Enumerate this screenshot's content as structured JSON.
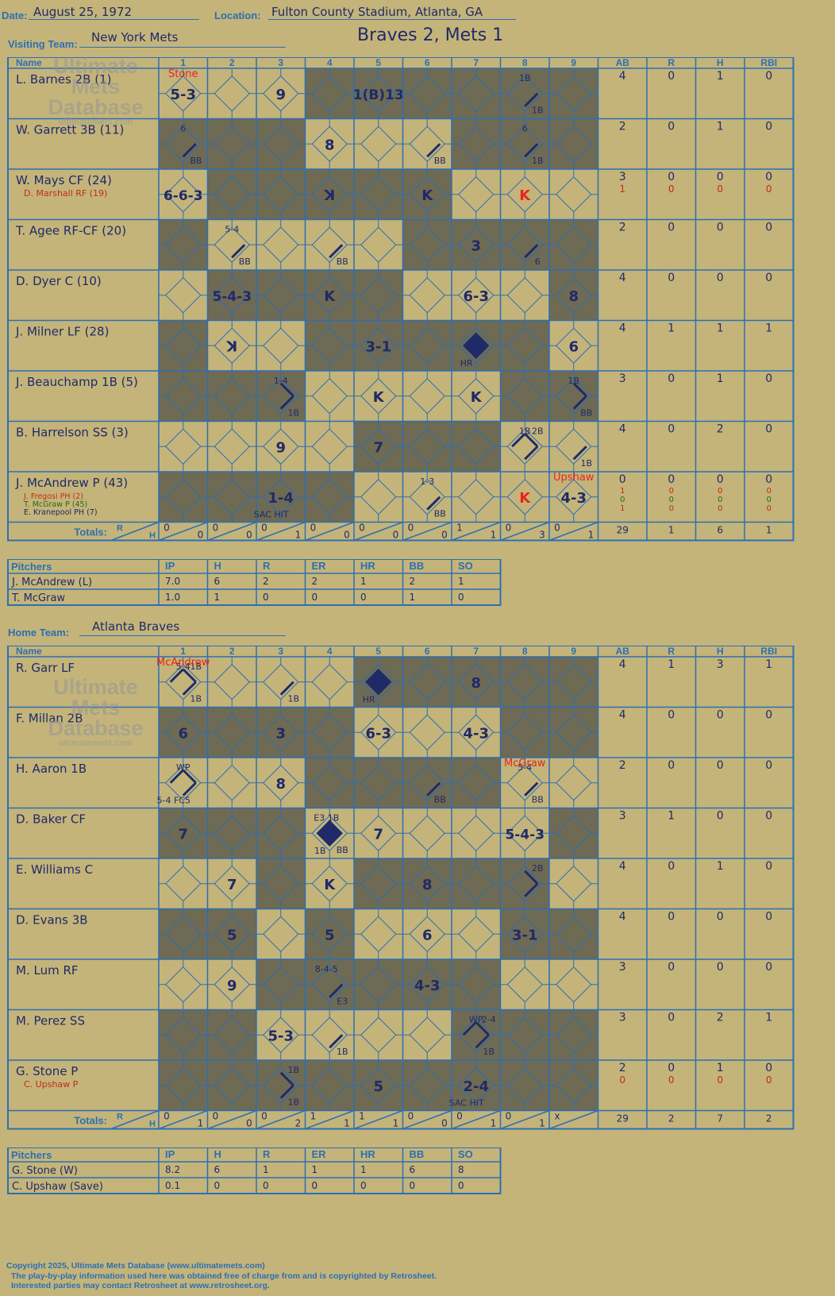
{
  "header": {
    "date_label": "Date:",
    "date": "August 25, 1972",
    "location_label": "Location:",
    "location": "Fulton County Stadium, Atlanta, GA",
    "title": "Braves 2, Mets 1",
    "visiting_label": "Visiting Team:",
    "visiting_team": "New York Mets",
    "home_label": "Home Team:",
    "home_team": "Atlanta Braves"
  },
  "grid_headers": {
    "name": "Name",
    "innings": [
      "1",
      "2",
      "3",
      "4",
      "5",
      "6",
      "7",
      "8",
      "9"
    ],
    "stats": [
      "AB",
      "R",
      "H",
      "RBI"
    ],
    "totals": "Totals:",
    "r": "R",
    "h": "H"
  },
  "visitors": {
    "rows": [
      {
        "name": "L. Barnes 2B (1)",
        "subs": [],
        "stats": [
          [
            "4",
            "0",
            "1",
            "0"
          ]
        ],
        "cells": [
          {
            "c": 0,
            "t": "5-3",
            "pitcher": "Stone"
          },
          {
            "c": 2,
            "t": "9"
          },
          {
            "c": 4,
            "t": "1(B)13"
          },
          {
            "c": 7,
            "t": "",
            "l": "1B",
            "b": "1B",
            "seg": 1
          }
        ]
      },
      {
        "name": "W. Garrett 3B (11)",
        "subs": [],
        "stats": [
          [
            "2",
            "0",
            "1",
            "0"
          ]
        ],
        "cells": [
          {
            "c": 0,
            "t": "",
            "l": "6",
            "b": "BB",
            "seg": 1
          },
          {
            "c": 3,
            "t": "8"
          },
          {
            "c": 5,
            "t": "",
            "b": "BB",
            "seg": 1
          },
          {
            "c": 7,
            "t": "",
            "l": "6",
            "b": "1B",
            "seg": 1
          }
        ]
      },
      {
        "name": "W. Mays CF (24)",
        "subs": [
          {
            "n": "D. Marshall RF (19)",
            "cl": "#c42a1a"
          }
        ],
        "stats": [
          [
            "3",
            "0",
            "0",
            "0"
          ],
          [
            "1",
            "0",
            "0",
            "0"
          ]
        ],
        "cells": [
          {
            "c": 0,
            "t": "6-6-3"
          },
          {
            "c": 3,
            "t": "ꓘ"
          },
          {
            "c": 5,
            "t": "K"
          },
          {
            "c": 7,
            "t": "K",
            "red": true
          }
        ]
      },
      {
        "name": "T. Agee RF-CF (20)",
        "subs": [],
        "stats": [
          [
            "2",
            "0",
            "0",
            "0"
          ]
        ],
        "cells": [
          {
            "c": 1,
            "t": "",
            "l": "5-4",
            "b": "BB",
            "seg": 1
          },
          {
            "c": 3,
            "t": "",
            "b": "BB",
            "seg": 1
          },
          {
            "c": 6,
            "t": "3"
          },
          {
            "c": 7,
            "t": "",
            "b": "6",
            "seg": 1
          }
        ]
      },
      {
        "name": "D. Dyer C (10)",
        "subs": [],
        "stats": [
          [
            "4",
            "0",
            "0",
            "0"
          ]
        ],
        "cells": [
          {
            "c": 1,
            "t": "5-4-3"
          },
          {
            "c": 3,
            "t": "K"
          },
          {
            "c": 6,
            "t": "6-3"
          },
          {
            "c": 8,
            "t": "8"
          }
        ]
      },
      {
        "name": "J. Milner LF (28)",
        "subs": [],
        "stats": [
          [
            "4",
            "1",
            "1",
            "1"
          ]
        ],
        "cells": [
          {
            "c": 1,
            "t": "ꓘ"
          },
          {
            "c": 4,
            "t": "3-1"
          },
          {
            "c": 6,
            "t": "",
            "hr": true,
            "bl": "HR"
          },
          {
            "c": 8,
            "t": "6"
          }
        ]
      },
      {
        "name": "J. Beauchamp 1B (5)",
        "subs": [],
        "stats": [
          [
            "3",
            "0",
            "1",
            "0"
          ]
        ],
        "cells": [
          {
            "c": 2,
            "t": "",
            "l": "1-4",
            "b": "1B",
            "seg": 2
          },
          {
            "c": 4,
            "t": "K"
          },
          {
            "c": 6,
            "t": "K"
          },
          {
            "c": 8,
            "t": "",
            "l": "1B",
            "b": "BB",
            "seg": 2
          }
        ]
      },
      {
        "name": "B. Harrelson SS (3)",
        "subs": [],
        "stats": [
          [
            "4",
            "0",
            "2",
            "0"
          ]
        ],
        "cells": [
          {
            "c": 2,
            "t": "9"
          },
          {
            "c": 4,
            "t": "7"
          },
          {
            "c": 7,
            "t": "",
            "l": "1B",
            "r": "2B",
            "seg": 3
          },
          {
            "c": 8,
            "t": "",
            "b": "1B",
            "seg": 1
          }
        ]
      },
      {
        "name": "J. McAndrew P (43)",
        "subs": [
          {
            "n": "J. Fregosi PH (2)",
            "cl": "#c42a1a"
          },
          {
            "n": "T. McGraw P (45)",
            "cl": "#2a6a1a"
          },
          {
            "n": "E. Kranepool PH (7)",
            "cl": "#1f2a68"
          }
        ],
        "stats": [
          [
            "0",
            "0",
            "0",
            "0"
          ],
          [
            "1",
            "0",
            "0",
            "0"
          ],
          [
            "0",
            "0",
            "0",
            "0"
          ],
          [
            "1",
            "0",
            "0",
            "0"
          ]
        ],
        "cells": [
          {
            "c": 2,
            "t": "1-4",
            "bl": "SAC HIT"
          },
          {
            "c": 5,
            "t": "",
            "l": "1-3",
            "b": "BB",
            "seg": 1
          },
          {
            "c": 7,
            "t": "K",
            "red": true
          },
          {
            "c": 8,
            "t": "4-3",
            "pitcher": "Upshaw"
          }
        ]
      }
    ],
    "shaded": [
      [
        1,
        3,
        5,
        6,
        8
      ],
      [
        1,
        2,
        4,
        6,
        8
      ],
      [
        1,
        2,
        4,
        6,
        8
      ],
      [
        0,
        2,
        4,
        5,
        8
      ],
      [
        0,
        2,
        4,
        5,
        7
      ],
      [
        0,
        2,
        3,
        5,
        7
      ],
      [
        0,
        1,
        3,
        5,
        7
      ],
      [
        0,
        1,
        3,
        5,
        6
      ],
      [
        0,
        1,
        3,
        4,
        6
      ]
    ],
    "totals": [
      [
        "0",
        "0"
      ],
      [
        "0",
        "0"
      ],
      [
        "0",
        "1"
      ],
      [
        "0",
        "0"
      ],
      [
        "0",
        "0"
      ],
      [
        "0",
        "0"
      ],
      [
        "1",
        "1"
      ],
      [
        "0",
        "3"
      ],
      [
        "0",
        "1"
      ]
    ],
    "total_stats": [
      "29",
      "1",
      "6",
      "1"
    ]
  },
  "visitor_pitchers": {
    "label": "Pitchers",
    "cols": [
      "IP",
      "H",
      "R",
      "ER",
      "HR",
      "BB",
      "SO"
    ],
    "rows": [
      {
        "name": "J. McAndrew (L)",
        "vals": [
          "7.0",
          "6",
          "2",
          "2",
          "1",
          "2",
          "1"
        ]
      },
      {
        "name": "T. McGraw",
        "vals": [
          "1.0",
          "1",
          "0",
          "0",
          "0",
          "1",
          "0"
        ]
      }
    ]
  },
  "home": {
    "rows": [
      {
        "name": "R. Garr LF",
        "subs": [],
        "stats": [
          [
            "4",
            "1",
            "3",
            "1"
          ]
        ],
        "cells": [
          {
            "c": 0,
            "t": "",
            "l": "5-4",
            "r": "1B",
            "b": "1B",
            "seg": 3,
            "pitcher": "McAndrew"
          },
          {
            "c": 2,
            "t": "",
            "b": "1B",
            "seg": 1
          },
          {
            "c": 4,
            "t": "",
            "hr": true,
            "bl": "HR"
          },
          {
            "c": 6,
            "t": "8"
          }
        ]
      },
      {
        "name": "F. Millan 2B",
        "subs": [],
        "stats": [
          [
            "4",
            "0",
            "0",
            "0"
          ]
        ],
        "cells": [
          {
            "c": 0,
            "t": "6"
          },
          {
            "c": 2,
            "t": "3"
          },
          {
            "c": 4,
            "t": "6-3"
          },
          {
            "c": 6,
            "t": "4-3"
          }
        ]
      },
      {
        "name": "H. Aaron 1B",
        "subs": [],
        "stats": [
          [
            "2",
            "0",
            "0",
            "0"
          ]
        ],
        "cells": [
          {
            "c": 0,
            "t": "",
            "l": "WP",
            "bl": "5-4 FC5",
            "seg": 3
          },
          {
            "c": 2,
            "t": "8"
          },
          {
            "c": 5,
            "t": "",
            "b": "BB",
            "seg": 1
          },
          {
            "c": 7,
            "t": "",
            "l": "5-4",
            "b": "BB",
            "seg": 1,
            "pitcher": "McGraw"
          }
        ]
      },
      {
        "name": "D. Baker CF",
        "subs": [],
        "stats": [
          [
            "3",
            "1",
            "0",
            "0"
          ]
        ],
        "cells": [
          {
            "c": 0,
            "t": "7"
          },
          {
            "c": 3,
            "t": "",
            "hr": true,
            "l": "E3 1B",
            "bl": "1B",
            "b": "BB"
          },
          {
            "c": 4,
            "t": "7"
          },
          {
            "c": 7,
            "t": "5-4-3"
          }
        ]
      },
      {
        "name": "E. Williams C",
        "subs": [],
        "stats": [
          [
            "4",
            "0",
            "1",
            "0"
          ]
        ],
        "cells": [
          {
            "c": 1,
            "t": "7"
          },
          {
            "c": 3,
            "t": "K"
          },
          {
            "c": 5,
            "t": "8"
          },
          {
            "c": 7,
            "t": "",
            "r": "2B",
            "seg": 2
          }
        ]
      },
      {
        "name": "D. Evans 3B",
        "subs": [],
        "stats": [
          [
            "4",
            "0",
            "0",
            "0"
          ]
        ],
        "cells": [
          {
            "c": 1,
            "t": "5"
          },
          {
            "c": 3,
            "t": "5"
          },
          {
            "c": 5,
            "t": "6"
          },
          {
            "c": 7,
            "t": "3-1"
          }
        ]
      },
      {
        "name": "M. Lum RF",
        "subs": [],
        "stats": [
          [
            "3",
            "0",
            "0",
            "0"
          ]
        ],
        "cells": [
          {
            "c": 1,
            "t": "9"
          },
          {
            "c": 3,
            "t": "",
            "l": "8-4-5",
            "b": "E3",
            "seg": 1
          },
          {
            "c": 5,
            "t": "4-3"
          }
        ]
      },
      {
        "name": "M. Perez SS",
        "subs": [],
        "stats": [
          [
            "3",
            "0",
            "2",
            "1"
          ]
        ],
        "cells": [
          {
            "c": 2,
            "t": "5-3"
          },
          {
            "c": 3,
            "t": "",
            "b": "1B",
            "seg": 1
          },
          {
            "c": 6,
            "t": "",
            "l": "WP",
            "r": "2-4",
            "b": "1B",
            "seg": 3
          }
        ]
      },
      {
        "name": "G. Stone P",
        "subs": [
          {
            "n": "C. Upshaw P",
            "cl": "#c42a1a"
          }
        ],
        "stats": [
          [
            "2",
            "0",
            "1",
            "0"
          ],
          [
            "0",
            "0",
            "0",
            "0"
          ]
        ],
        "cells": [
          {
            "c": 2,
            "t": "",
            "r": "1B",
            "b": "1B",
            "seg": 2
          },
          {
            "c": 4,
            "t": "5"
          },
          {
            "c": 6,
            "t": "2-4",
            "bl": "SAC HIT"
          }
        ]
      }
    ],
    "shaded": [
      [
        1,
        3,
        5,
        7,
        8
      ],
      [
        1,
        3,
        5,
        7,
        8
      ],
      [
        1,
        3,
        4,
        6,
        8
      ],
      [
        1,
        2,
        5,
        6,
        8
      ],
      [
        0,
        2,
        4,
        6,
        8
      ],
      [
        0,
        2,
        4,
        6,
        8
      ],
      [
        0,
        2,
        4,
        6,
        7,
        8
      ],
      [
        0,
        1,
        4,
        5,
        7,
        8
      ],
      [
        0,
        1,
        3,
        5,
        7,
        8
      ]
    ],
    "totals": [
      [
        "0",
        "1"
      ],
      [
        "0",
        "0"
      ],
      [
        "0",
        "2"
      ],
      [
        "1",
        "1"
      ],
      [
        "1",
        "1"
      ],
      [
        "0",
        "0"
      ],
      [
        "0",
        "1"
      ],
      [
        "0",
        "1"
      ],
      [
        "x",
        ""
      ]
    ],
    "total_stats": [
      "29",
      "2",
      "7",
      "2"
    ]
  },
  "home_pitchers": {
    "label": "Pitchers",
    "cols": [
      "IP",
      "H",
      "R",
      "ER",
      "HR",
      "BB",
      "SO"
    ],
    "rows": [
      {
        "name": "G. Stone (W)",
        "vals": [
          "8.2",
          "6",
          "1",
          "1",
          "1",
          "6",
          "8"
        ]
      },
      {
        "name": "C. Upshaw (Save)",
        "vals": [
          "0.1",
          "0",
          "0",
          "0",
          "0",
          "0",
          "0"
        ]
      }
    ]
  },
  "logo": {
    "line1": "Ultimate",
    "line2": "Mets",
    "line3": "Database",
    "url": "ultimatemets.com"
  },
  "footer": {
    "copyright": "Copyright 2025, Ultimate Mets Database (www.ultimatemets.com)",
    "line2": "The play-by-play information used here was obtained free of charge from and is copyrighted by Retrosheet.",
    "line3": "Interested parties may contact Retrosheet at www.retrosheet.org."
  },
  "colors": {
    "background": "#c4b47a",
    "grid": "#2c6fb4",
    "shaded": "#6e6a54",
    "ink": "#1f2a68",
    "red": "#e8251a"
  }
}
